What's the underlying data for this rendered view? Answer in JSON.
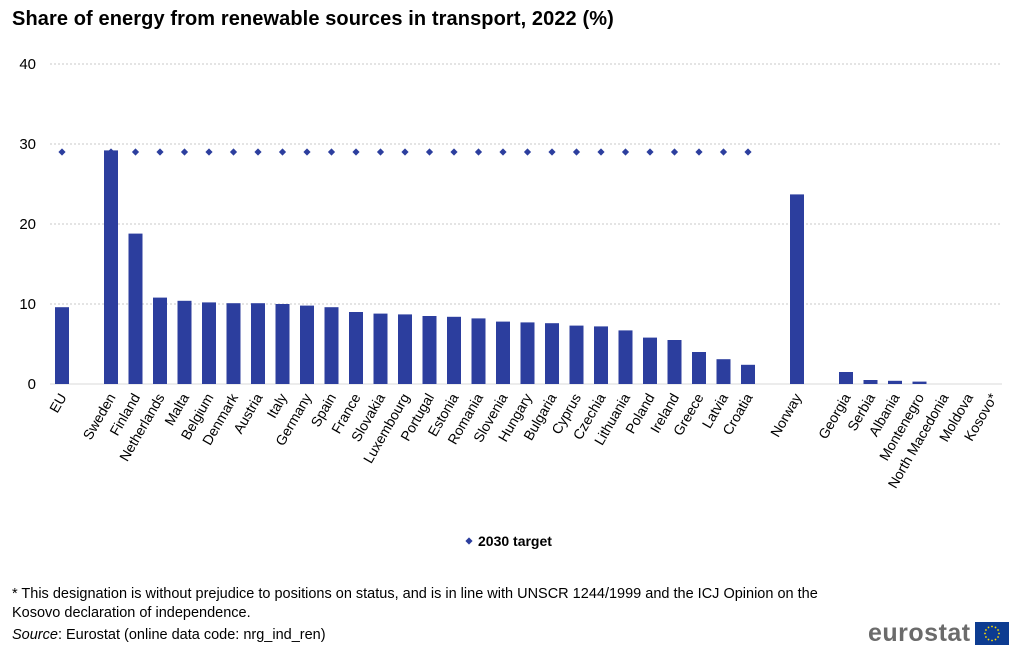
{
  "title": "Share of energy from renewable sources in transport, 2022 (%)",
  "footnote": "* This designation is without prejudice to positions on status, and is in line with UNSCR 1244/1999 and the ICJ Opinion on the Kosovo declaration of independence.",
  "source_label": "Source",
  "source_text": ": Eurostat (online data code: nrg_ind_ren)",
  "logo_text": "eurostat",
  "colors": {
    "bar": "#2c3e9e",
    "marker": "#2c3e9e",
    "grid": "#c8c8c8",
    "flag": "#0d3c91",
    "flag_star": "#ffde00"
  },
  "chart_data": {
    "type": "bar",
    "ylim": [
      0,
      40
    ],
    "yticks": [
      0,
      10,
      20,
      30,
      40
    ],
    "grid": true,
    "legend_position": "bottom",
    "categories": [
      "EU",
      "",
      "Sweden",
      "Finland",
      "Netherlands",
      "Malta",
      "Belgium",
      "Denmark",
      "Austria",
      "Italy",
      "Germany",
      "Spain",
      "France",
      "Slovakia",
      "Luxembourg",
      "Portugal",
      "Estonia",
      "Romania",
      "Slovenia",
      "Hungary",
      "Bulgaria",
      "Cyprus",
      "Czechia",
      "Lithuania",
      "Poland",
      "Ireland",
      "Greece",
      "Latvia",
      "Croatia",
      "",
      "Norway",
      "",
      "Georgia",
      "Serbia",
      "Albania",
      "Montenegro",
      "North Macedonia",
      "Moldova",
      "Kosovo*"
    ],
    "series": [
      {
        "kind": "bar",
        "values": [
          9.6,
          null,
          29.2,
          18.8,
          10.8,
          10.4,
          10.2,
          10.1,
          10.1,
          10.0,
          9.8,
          9.6,
          9.0,
          8.8,
          8.7,
          8.5,
          8.4,
          8.2,
          7.8,
          7.7,
          7.6,
          7.3,
          7.2,
          6.7,
          5.8,
          5.5,
          4.0,
          3.1,
          2.4,
          null,
          23.7,
          null,
          1.5,
          0.5,
          0.4,
          0.3,
          0.0,
          0.0,
          0.0
        ]
      },
      {
        "name": "2030 target",
        "kind": "marker",
        "values": [
          29,
          null,
          29,
          29,
          29,
          29,
          29,
          29,
          29,
          29,
          29,
          29,
          29,
          29,
          29,
          29,
          29,
          29,
          29,
          29,
          29,
          29,
          29,
          29,
          29,
          29,
          29,
          29,
          29,
          null,
          null,
          null,
          null,
          null,
          null,
          null,
          null,
          null,
          null
        ]
      }
    ]
  }
}
